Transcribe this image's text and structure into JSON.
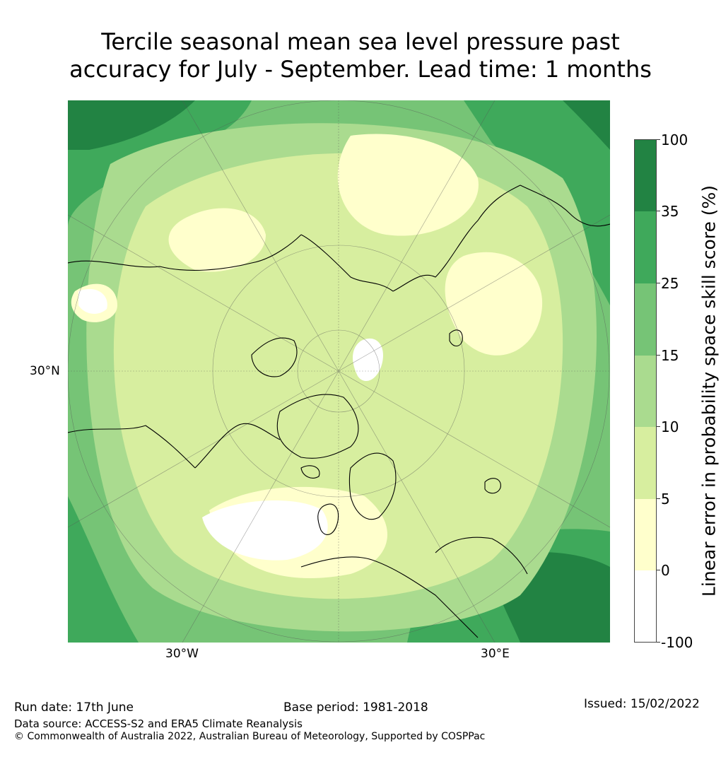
{
  "title": {
    "line1": "Tercile seasonal mean sea level pressure past",
    "line2": "accuracy for July - September. Lead time: 1 months"
  },
  "map": {
    "projection": "north-polar-stereographic",
    "grid_labels": {
      "lat_left": "30°N",
      "lon_left": "30°W",
      "lon_right": "30°E"
    }
  },
  "colorbar": {
    "label": "Linear error in probability space skill score (%)",
    "ticks": [
      "100",
      "35",
      "25",
      "15",
      "10",
      "5",
      "0",
      "-100"
    ],
    "bins": [
      {
        "range": "35 to 100",
        "color": "#228343"
      },
      {
        "range": "25 to 35",
        "color": "#3fa95b"
      },
      {
        "range": "15 to 25",
        "color": "#76c476"
      },
      {
        "range": "10 to 15",
        "color": "#aadb8f"
      },
      {
        "range": "5 to 10",
        "color": "#d7ee9f"
      },
      {
        "range": "0 to 5",
        "color": "#ffffcc"
      },
      {
        "range": "-100 to 0",
        "color": "#ffffff"
      }
    ]
  },
  "footer": {
    "run_date": "Run date: 17th June",
    "base_period": "Base period: 1981-2018",
    "issued": "Issued: 15/02/2022",
    "data_source": "Data source: ACCESS-S2 and ERA5 Climate Reanalysis",
    "copyright": "© Commonwealth of Australia 2022, Australian Bureau of Meteorology, Supported by COSPPac"
  }
}
